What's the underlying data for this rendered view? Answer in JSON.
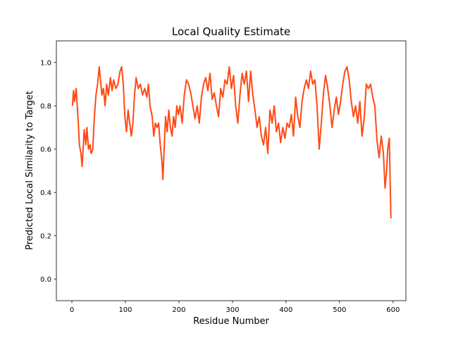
{
  "chart_data": {
    "type": "line",
    "title": "Local Quality Estimate",
    "x_label": "Residue Number",
    "y_label": "Predicted Local Similarity to Target",
    "xlim": [
      -29,
      624
    ],
    "ylim": [
      -0.1,
      1.1
    ],
    "xticks": [
      0,
      100,
      200,
      300,
      400,
      500,
      600
    ],
    "yticks": [
      {
        "value": 0,
        "label": "0.0"
      },
      0.2,
      0.4,
      0.6,
      0.8,
      {
        "value": 1,
        "label": "1.0"
      }
    ],
    "grid": false,
    "series": [
      {
        "color": "#ff4a14",
        "x": [
          1,
          3,
          5,
          8,
          10,
          12,
          14,
          17,
          19,
          21,
          23,
          26,
          28,
          31,
          34,
          36,
          39,
          42,
          45,
          48,
          51,
          53,
          56,
          59,
          62,
          65,
          68,
          72,
          75,
          78,
          82,
          86,
          90,
          93,
          96,
          99,
          102,
          105,
          108,
          111,
          114,
          117,
          120,
          124,
          128,
          132,
          136,
          140,
          143,
          146,
          150,
          153,
          156,
          159,
          162,
          165,
          168,
          170,
          172,
          175,
          178,
          181,
          184,
          187,
          190,
          193,
          196,
          199,
          202,
          206,
          210,
          214,
          218,
          222,
          226,
          230,
          234,
          238,
          242,
          246,
          250,
          254,
          258,
          262,
          266,
          270,
          274,
          278,
          282,
          286,
          290,
          294,
          298,
          302,
          306,
          310,
          314,
          318,
          322,
          326,
          330,
          334,
          338,
          342,
          346,
          350,
          354,
          358,
          362,
          366,
          370,
          374,
          378,
          382,
          386,
          390,
          394,
          398,
          402,
          406,
          410,
          414,
          418,
          422,
          426,
          430,
          434,
          438,
          442,
          446,
          450,
          454,
          458,
          462,
          466,
          470,
          474,
          478,
          482,
          486,
          490,
          494,
          498,
          502,
          506,
          510,
          514,
          518,
          522,
          526,
          530,
          534,
          538,
          542,
          546,
          550,
          554,
          558,
          562,
          566,
          570,
          574,
          578,
          582,
          585,
          588,
          590,
          593,
          596
        ],
        "values": [
          0.8,
          0.87,
          0.82,
          0.88,
          0.8,
          0.72,
          0.62,
          0.58,
          0.52,
          0.6,
          0.69,
          0.62,
          0.7,
          0.6,
          0.62,
          0.58,
          0.6,
          0.75,
          0.85,
          0.9,
          0.98,
          0.93,
          0.85,
          0.88,
          0.8,
          0.9,
          0.85,
          0.93,
          0.87,
          0.92,
          0.88,
          0.9,
          0.96,
          0.98,
          0.9,
          0.75,
          0.68,
          0.78,
          0.72,
          0.66,
          0.72,
          0.85,
          0.93,
          0.88,
          0.9,
          0.85,
          0.88,
          0.84,
          0.9,
          0.8,
          0.75,
          0.66,
          0.72,
          0.7,
          0.72,
          0.62,
          0.55,
          0.46,
          0.58,
          0.75,
          0.68,
          0.78,
          0.7,
          0.66,
          0.75,
          0.7,
          0.8,
          0.76,
          0.8,
          0.72,
          0.85,
          0.92,
          0.9,
          0.86,
          0.8,
          0.74,
          0.8,
          0.72,
          0.84,
          0.9,
          0.93,
          0.87,
          0.95,
          0.83,
          0.86,
          0.8,
          0.75,
          0.88,
          0.84,
          0.92,
          0.9,
          0.98,
          0.88,
          0.94,
          0.8,
          0.72,
          0.85,
          0.95,
          0.9,
          0.96,
          0.82,
          0.96,
          0.85,
          0.78,
          0.7,
          0.75,
          0.66,
          0.62,
          0.7,
          0.58,
          0.78,
          0.72,
          0.8,
          0.68,
          0.72,
          0.63,
          0.7,
          0.65,
          0.72,
          0.7,
          0.76,
          0.66,
          0.84,
          0.75,
          0.7,
          0.82,
          0.88,
          0.92,
          0.88,
          0.96,
          0.9,
          0.92,
          0.8,
          0.6,
          0.72,
          0.86,
          0.94,
          0.88,
          0.8,
          0.7,
          0.78,
          0.84,
          0.76,
          0.82,
          0.9,
          0.96,
          0.98,
          0.92,
          0.82,
          0.75,
          0.8,
          0.72,
          0.82,
          0.66,
          0.74,
          0.9,
          0.88,
          0.9,
          0.84,
          0.8,
          0.64,
          0.56,
          0.66,
          0.58,
          0.42,
          0.5,
          0.6,
          0.65,
          0.28
        ]
      }
    ]
  }
}
